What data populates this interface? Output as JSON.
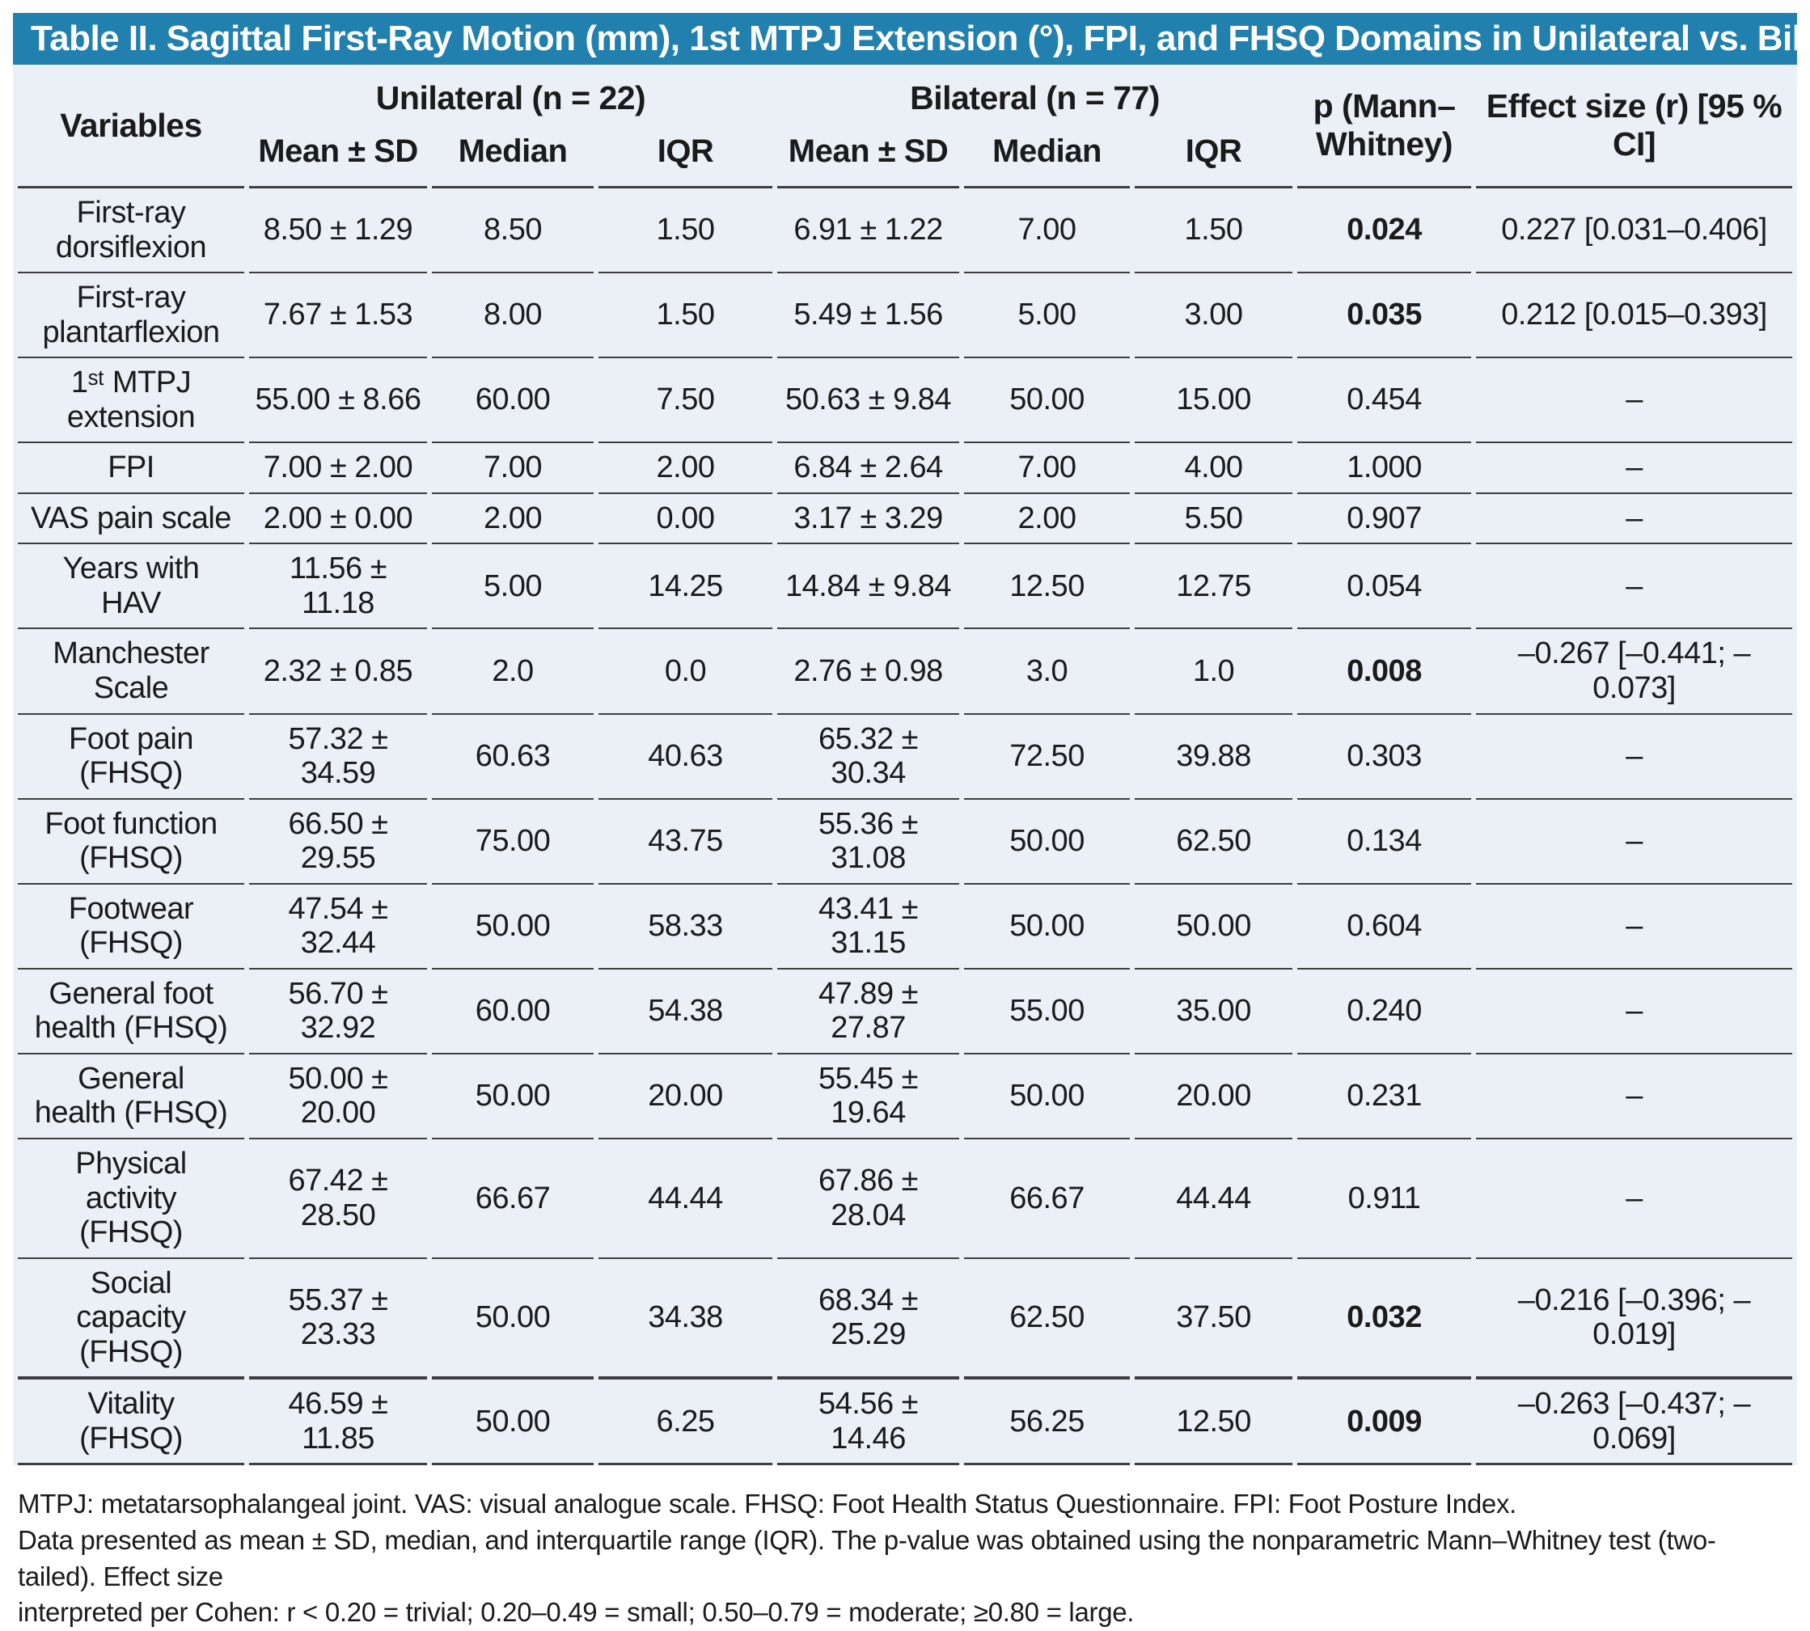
{
  "title": "Table II. Sagittal First-Ray Motion (mm), 1st MTPJ Extension (°), FPI, and FHSQ Domains in Unilateral vs. Bilateral HAV",
  "header": {
    "variables": "Variables",
    "group_unilateral": "Unilateral (n = 22)",
    "group_bilateral": "Bilateral (n = 77)",
    "sub_mean": "Mean ± SD",
    "sub_median": "Median",
    "sub_iqr": "IQR",
    "p_label": "p (Mann–\nWhitney)",
    "effect_label": "Effect size (r) [95 % CI]"
  },
  "rows": [
    {
      "variable": "First-ray\ndorsiflexion",
      "uni": [
        "8.50 ± 1.29",
        "8.50",
        "1.50"
      ],
      "bil": [
        "6.91 ± 1.22",
        "7.00",
        "1.50"
      ],
      "p": "0.024",
      "p_bold": true,
      "effect": "0.227 [0.031–0.406]",
      "thick_bottom": false
    },
    {
      "variable": "First-ray\nplantarflexion",
      "uni": [
        "7.67 ± 1.53",
        "8.00",
        "1.50"
      ],
      "bil": [
        "5.49 ± 1.56",
        "5.00",
        "3.00"
      ],
      "p": "0.035",
      "p_bold": true,
      "effect": "0.212 [0.015–0.393]",
      "thick_bottom": false
    },
    {
      "variable": "1ˢᵗ MTPJ\nextension",
      "uni": [
        "55.00 ± 8.66",
        "60.00",
        "7.50"
      ],
      "bil": [
        "50.63 ± 9.84",
        "50.00",
        "15.00"
      ],
      "p": "0.454",
      "p_bold": false,
      "effect": "–",
      "thick_bottom": false
    },
    {
      "variable": "FPI",
      "uni": [
        "7.00 ± 2.00",
        "7.00",
        "2.00"
      ],
      "bil": [
        "6.84 ± 2.64",
        "7.00",
        "4.00"
      ],
      "p": "1.000",
      "p_bold": false,
      "effect": "–",
      "thick_bottom": false
    },
    {
      "variable": "VAS pain scale",
      "uni": [
        "2.00 ± 0.00",
        "2.00",
        "0.00"
      ],
      "bil": [
        "3.17 ± 3.29",
        "2.00",
        "5.50"
      ],
      "p": "0.907",
      "p_bold": false,
      "effect": "–",
      "thick_bottom": false
    },
    {
      "variable": "Years with\nHAV",
      "uni": [
        "11.56 ± 11.18",
        "5.00",
        "14.25"
      ],
      "bil": [
        "14.84 ± 9.84",
        "12.50",
        "12.75"
      ],
      "p": "0.054",
      "p_bold": false,
      "effect": "–",
      "thick_bottom": false
    },
    {
      "variable": "Manchester\nScale",
      "uni": [
        "2.32 ± 0.85",
        "2.0",
        "0.0"
      ],
      "bil": [
        "2.76 ± 0.98",
        "3.0",
        "1.0"
      ],
      "p": "0.008",
      "p_bold": true,
      "effect": "–0.267 [–0.441; –0.073]",
      "thick_bottom": false
    },
    {
      "variable": "Foot pain\n(FHSQ)",
      "uni": [
        "57.32 ± 34.59",
        "60.63",
        "40.63"
      ],
      "bil": [
        "65.32 ± 30.34",
        "72.50",
        "39.88"
      ],
      "p": "0.303",
      "p_bold": false,
      "effect": "–",
      "thick_bottom": false
    },
    {
      "variable": "Foot function\n(FHSQ)",
      "uni": [
        "66.50 ± 29.55",
        "75.00",
        "43.75"
      ],
      "bil": [
        "55.36 ± 31.08",
        "50.00",
        "62.50"
      ],
      "p": "0.134",
      "p_bold": false,
      "effect": "–",
      "thick_bottom": false
    },
    {
      "variable": "Footwear\n(FHSQ)",
      "uni": [
        "47.54 ± 32.44",
        "50.00",
        "58.33"
      ],
      "bil": [
        "43.41 ± 31.15",
        "50.00",
        "50.00"
      ],
      "p": "0.604",
      "p_bold": false,
      "effect": "–",
      "thick_bottom": false
    },
    {
      "variable": "General foot\nhealth (FHSQ)",
      "uni": [
        "56.70 ± 32.92",
        "60.00",
        "54.38"
      ],
      "bil": [
        "47.89 ± 27.87",
        "55.00",
        "35.00"
      ],
      "p": "0.240",
      "p_bold": false,
      "effect": "–",
      "thick_bottom": false
    },
    {
      "variable": "General\nhealth (FHSQ)",
      "uni": [
        "50.00 ± 20.00",
        "50.00",
        "20.00"
      ],
      "bil": [
        "55.45 ± 19.64",
        "50.00",
        "20.00"
      ],
      "p": "0.231",
      "p_bold": false,
      "effect": "–",
      "thick_bottom": false
    },
    {
      "variable": "Physical\nactivity\n(FHSQ)",
      "uni": [
        "67.42 ± 28.50",
        "66.67",
        "44.44"
      ],
      "bil": [
        "67.86 ± 28.04",
        "66.67",
        "44.44"
      ],
      "p": "0.911",
      "p_bold": false,
      "effect": "–",
      "thick_bottom": false
    },
    {
      "variable": "Social\ncapacity\n(FHSQ)",
      "uni": [
        "55.37 ± 23.33",
        "50.00",
        "34.38"
      ],
      "bil": [
        "68.34 ± 25.29",
        "62.50",
        "37.50"
      ],
      "p": "0.032",
      "p_bold": true,
      "effect": "–0.216 [–0.396; –0.019]",
      "thick_bottom": true
    },
    {
      "variable": "Vitality\n(FHSQ)",
      "uni": [
        "46.59 ± 11.85",
        "50.00",
        "6.25"
      ],
      "bil": [
        "54.56 ± 14.46",
        "56.25",
        "12.50"
      ],
      "p": "0.009",
      "p_bold": true,
      "effect": "–0.263 [–0.437; –0.069]",
      "thick_bottom": false
    }
  ],
  "footnotes": {
    "note1": "MTPJ: metatarsophalangeal joint. VAS: visual analogue scale. FHSQ: Foot Health Status Questionnaire. FPI: Foot Posture Index.",
    "note2": "Data presented as mean ± SD, median, and interquartile range (IQR). The p-value was obtained using the nonparametric Mann–Whitney test (two-tailed). Effect size\ninterpreted per Cohen: r < 0.20 = trivial; 0.20–0.49 = small; 0.50–0.79 = moderate; ≥0.80 = large."
  },
  "colors": {
    "header_blue": "#2180AD",
    "table_bg": "#EBF0F7",
    "divider": "#3D3D3D",
    "text": "#1B1B1B"
  }
}
